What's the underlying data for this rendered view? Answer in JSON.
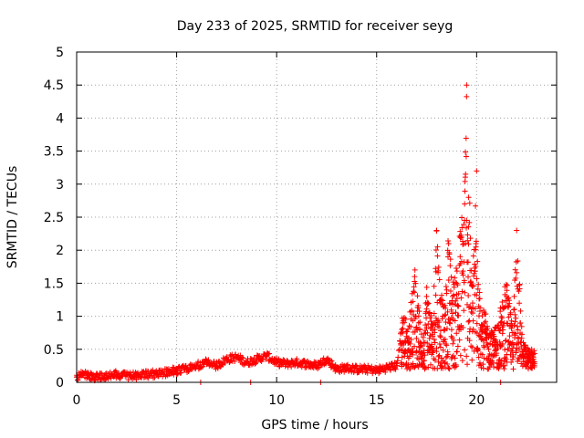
{
  "chart_data": {
    "type": "scatter",
    "title": "Day 233 of 2025, SRMTID for receiver seyg",
    "xlabel": "GPS time / hours",
    "ylabel": "SRMTID / TECUs",
    "xlim": [
      0,
      24
    ],
    "ylim": [
      0,
      5
    ],
    "x_ticks": [
      "0",
      "5",
      "10",
      "15",
      "20"
    ],
    "y_ticks": [
      "0",
      "0.5",
      "1",
      "1.5",
      "2",
      "2.5",
      "3",
      "3.5",
      "4",
      "4.5",
      "5"
    ],
    "grid": true,
    "marker": "+",
    "series": [
      {
        "name": "seyg",
        "color": "#ff0000",
        "x": [
          0.0,
          0.3,
          0.6,
          1.0,
          1.5,
          2.0,
          2.5,
          3.0,
          3.5,
          4.0,
          4.5,
          5.0,
          5.5,
          6.0,
          6.5,
          7.0,
          7.5,
          8.0,
          8.5,
          9.0,
          9.5,
          10.0,
          10.5,
          11.0,
          11.5,
          12.0,
          12.5,
          13.0,
          13.5,
          14.0,
          14.5,
          15.0,
          15.5,
          16.0,
          16.3,
          16.6,
          16.9,
          17.1,
          17.3,
          17.5,
          17.8,
          18.0,
          18.2,
          18.4,
          18.6,
          18.8,
          19.0,
          19.2,
          19.4,
          19.5,
          19.6,
          19.8,
          20.0,
          20.2,
          20.4,
          20.6,
          20.9,
          21.2,
          21.5,
          21.8,
          22.0,
          22.3,
          22.6,
          22.8
        ],
        "y": [
          0.08,
          0.15,
          0.1,
          0.08,
          0.1,
          0.12,
          0.1,
          0.1,
          0.12,
          0.13,
          0.15,
          0.18,
          0.2,
          0.25,
          0.3,
          0.25,
          0.35,
          0.38,
          0.3,
          0.35,
          0.4,
          0.3,
          0.28,
          0.3,
          0.28,
          0.25,
          0.35,
          0.2,
          0.22,
          0.2,
          0.2,
          0.18,
          0.22,
          0.25,
          0.9,
          0.6,
          1.6,
          0.9,
          0.4,
          1.3,
          0.7,
          2.3,
          1.2,
          0.8,
          2.1,
          1.3,
          1.5,
          2.2,
          2.7,
          4.5,
          2.8,
          1.2,
          3.2,
          0.7,
          0.9,
          0.5,
          0.6,
          0.9,
          1.3,
          0.6,
          2.3,
          0.4,
          0.3,
          0.3
        ],
        "note": "values sampled from the visible point cloud; dense scatter reconstructed around these levels"
      }
    ]
  }
}
